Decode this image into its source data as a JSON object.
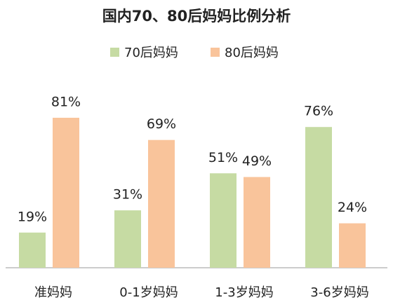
{
  "chart_data": {
    "type": "bar",
    "title": "国内70、80后妈妈比例分析",
    "categories": [
      "准妈妈",
      "0-1岁妈妈",
      "1-3岁妈妈",
      "3-6岁妈妈"
    ],
    "series": [
      {
        "name": "70后妈妈",
        "color": "#c6dba3",
        "values": [
          19,
          31,
          51,
          76
        ],
        "value_labels": [
          "19%",
          "31%",
          "51%",
          "76%"
        ]
      },
      {
        "name": "80后妈妈",
        "color": "#f9c49b",
        "values": [
          81,
          69,
          49,
          24
        ],
        "value_labels": [
          "81%",
          "69%",
          "49%",
          "24%"
        ]
      }
    ],
    "legend": "top"
  }
}
